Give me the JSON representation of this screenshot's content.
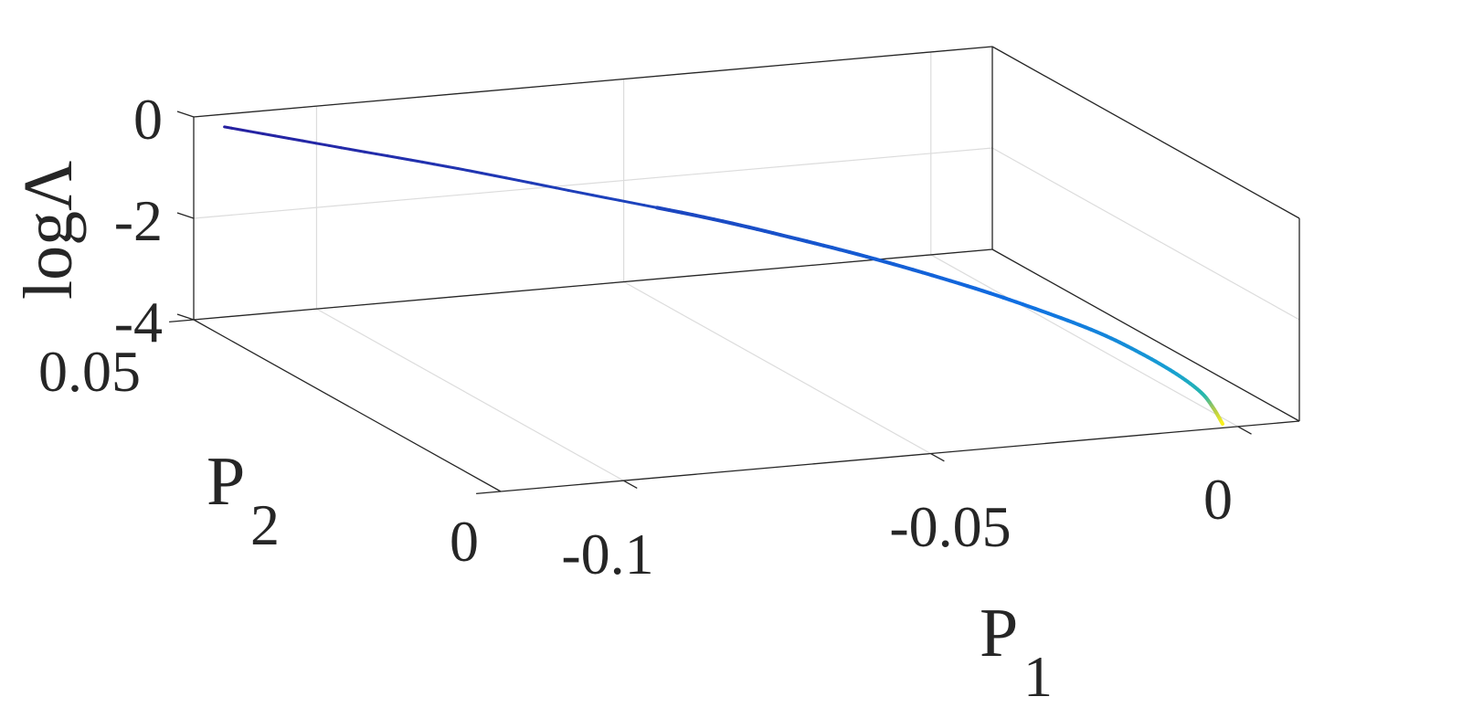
{
  "chart_data": {
    "type": "line",
    "view": "3d",
    "xlabel": "P",
    "xlabel_sub": "1",
    "ylabel": "P",
    "ylabel_sub": "2",
    "zlabel": "logΛ",
    "xlim": [
      -0.12,
      0.01
    ],
    "ylim": [
      0,
      0.05
    ],
    "zlim": [
      -4,
      0
    ],
    "grid": true,
    "colormap": "parula",
    "x_ticks": [
      {
        "value": -0.1,
        "label": "-0.1"
      },
      {
        "value": -0.05,
        "label": "-0.05"
      },
      {
        "value": 0,
        "label": "0"
      }
    ],
    "y_ticks": [
      {
        "value": 0,
        "label": "0"
      },
      {
        "value": 0.05,
        "label": "0.05"
      }
    ],
    "z_ticks": [
      {
        "value": 0,
        "label": "0"
      },
      {
        "value": -2,
        "label": "-2"
      },
      {
        "value": -4,
        "label": "-4"
      }
    ],
    "series": [
      {
        "points": [
          {
            "x": -0.115,
            "y": 0.05,
            "z": -0.25
          },
          {
            "x": -0.1,
            "y": 0.046,
            "z": -0.55
          },
          {
            "x": -0.085,
            "y": 0.042,
            "z": -0.85
          },
          {
            "x": -0.07,
            "y": 0.037,
            "z": -1.15
          },
          {
            "x": -0.055,
            "y": 0.032,
            "z": -1.45
          },
          {
            "x": -0.045,
            "y": 0.028,
            "z": -1.68
          },
          {
            "x": -0.035,
            "y": 0.024,
            "z": -1.95
          },
          {
            "x": -0.025,
            "y": 0.019,
            "z": -2.25
          },
          {
            "x": -0.018,
            "y": 0.015,
            "z": -2.5
          },
          {
            "x": -0.012,
            "y": 0.011,
            "z": -2.75
          },
          {
            "x": -0.008,
            "y": 0.008,
            "z": -3.0
          },
          {
            "x": -0.005,
            "y": 0.005,
            "z": -3.25
          },
          {
            "x": -0.003,
            "y": 0.003,
            "z": -3.5
          },
          {
            "x": -0.002,
            "y": 0.002,
            "z": -3.75
          },
          {
            "x": -0.0015,
            "y": 0.001,
            "z": -4.0
          }
        ]
      }
    ]
  }
}
